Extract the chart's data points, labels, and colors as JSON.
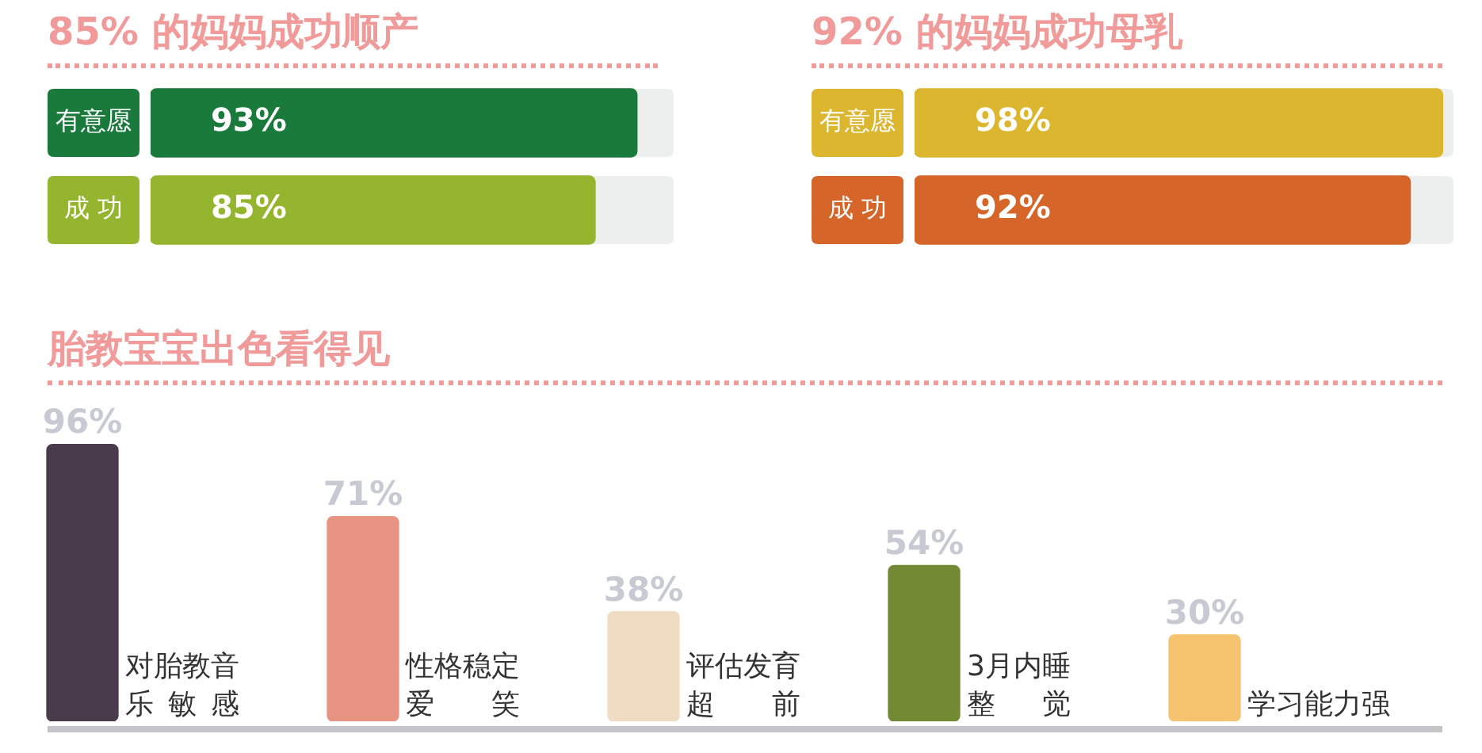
{
  "chart_data": [
    {
      "type": "bar",
      "orientation": "horizontal",
      "title": "85% 的妈妈成功顺产",
      "categories": [
        "有意愿",
        "成 功"
      ],
      "values": [
        93,
        85
      ],
      "colors": [
        "#1a7a3c",
        "#95b52f"
      ],
      "value_labels": [
        "93%",
        "85%"
      ],
      "xlim": [
        0,
        100
      ],
      "tick_labels": false
    },
    {
      "type": "bar",
      "orientation": "horizontal",
      "title": "92% 的妈妈成功母乳",
      "categories": [
        "有意愿",
        "成 功"
      ],
      "values": [
        98,
        92
      ],
      "colors": [
        "#dcb62e",
        "#d6652a"
      ],
      "value_labels": [
        "98%",
        "92%"
      ],
      "xlim": [
        0,
        100
      ],
      "tick_labels": false
    },
    {
      "type": "bar",
      "title": "胎教宝宝出色看得见",
      "categories": [
        "对胎教音乐敏感",
        "性格稳定爱笑",
        "评估发育超前",
        "3月内睡整觉",
        "学习能力强"
      ],
      "values": [
        96,
        71,
        38,
        54,
        30
      ],
      "colors": [
        "#493b4c",
        "#e89483",
        "#efdcc2",
        "#718a33",
        "#f6c46f"
      ],
      "value_labels": [
        "96%",
        "71%",
        "38%",
        "54%",
        "30%"
      ],
      "tick_labels": false
    }
  ]
}
